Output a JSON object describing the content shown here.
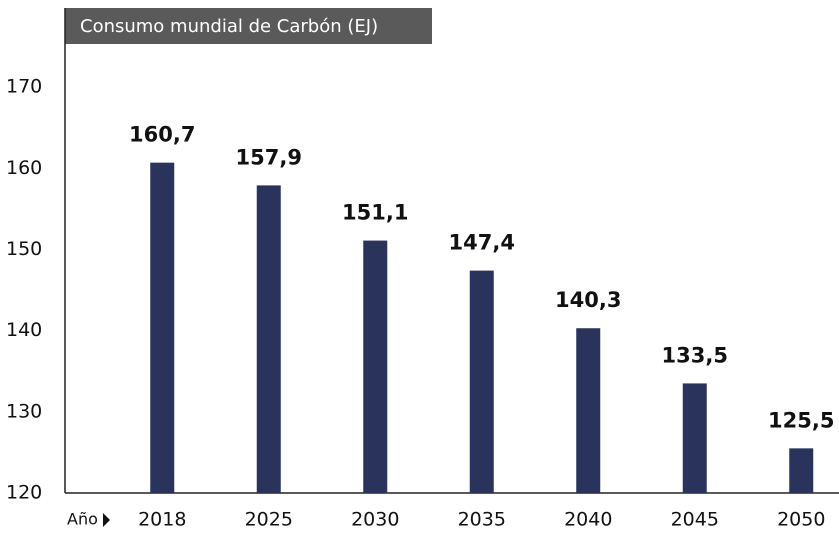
{
  "chart_data": {
    "type": "bar",
    "title": "Consumo mundial de Carbón (EJ)",
    "x_label": "Año",
    "categories": [
      "2018",
      "2025",
      "2030",
      "2035",
      "2040",
      "2045",
      "2050"
    ],
    "values": [
      160.7,
      157.9,
      151.1,
      147.4,
      140.3,
      133.5,
      125.5
    ],
    "value_labels": [
      "160,7",
      "157,9",
      "151,1",
      "147,4",
      "140,3",
      "133,5",
      "125,5"
    ],
    "color": "#29335c",
    "ylim": [
      120,
      180
    ],
    "yticks": [
      120,
      130,
      140,
      150,
      160,
      170
    ],
    "grid": false
  }
}
